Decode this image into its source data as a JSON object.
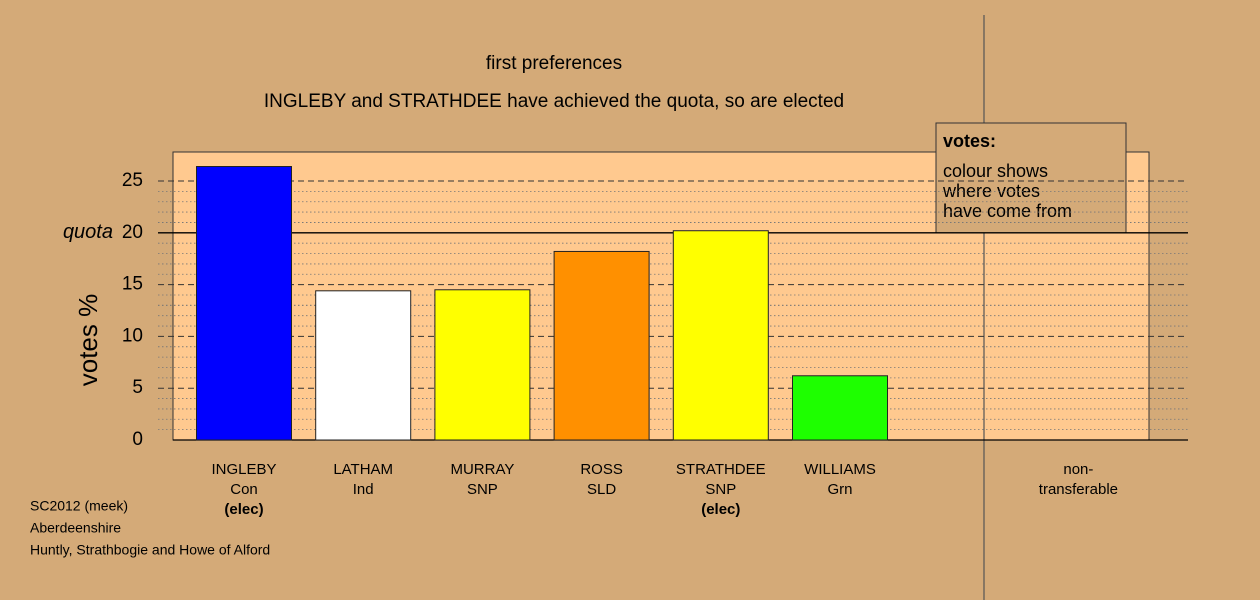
{
  "chart_data": {
    "type": "bar",
    "title": "first preferences",
    "subtitle": "INGLEBY and STRATHDEE have achieved the quota, so are elected",
    "ylabel": "votes %",
    "categories": [
      [
        "INGLEBY",
        "Con",
        "(elec)"
      ],
      [
        "LATHAM",
        "Ind"
      ],
      [
        "MURRAY",
        "SNP"
      ],
      [
        "ROSS",
        "SLD"
      ],
      [
        "STRATHDEE",
        "SNP",
        "(elec)"
      ],
      [
        "WILLIAMS",
        "Grn"
      ],
      [
        "non-",
        "transferable"
      ]
    ],
    "values": [
      26.4,
      14.4,
      14.5,
      18.2,
      20.2,
      6.2,
      0
    ],
    "colors": [
      "#0000ff",
      "#ffffff",
      "#ffff00",
      "#ff9000",
      "#ffff00",
      "#1eff00",
      "#888888"
    ],
    "ylim": [
      0,
      27.8
    ],
    "yticks": [
      0,
      5,
      10,
      15,
      20,
      25
    ],
    "quota": {
      "label": "quota",
      "value": 20
    },
    "legend": {
      "title": "votes:",
      "lines": [
        "colour shows",
        "where votes",
        "have come from"
      ]
    },
    "footer": [
      "SC2012 (meek)",
      "Aberdeenshire",
      "Huntly, Strathbogie and Howe of Alford"
    ]
  }
}
